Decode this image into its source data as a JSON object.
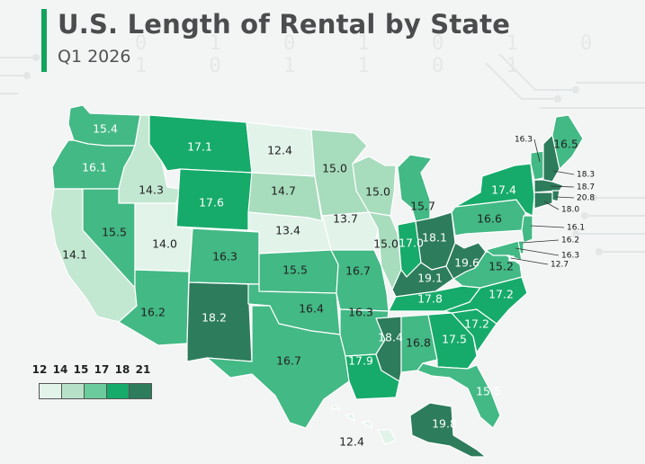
{
  "title": "U.S. Length of Rental by State",
  "subtitle": "Q1 2026",
  "background_digits": "0 1 0 1 0 1 0 1 0 1 1 0 1",
  "legend": {
    "breaks": [
      "12",
      "14",
      "15",
      "17",
      "18",
      "21"
    ],
    "colors": [
      "#e2f3ea",
      "#b7e2c9",
      "#6ccb9c",
      "#16ab6a",
      "#2d7c5c"
    ]
  },
  "states": [
    {
      "abbr": "WA",
      "value": "15.4",
      "color": "#43b985"
    },
    {
      "abbr": "OR",
      "value": "16.1",
      "color": "#43b985"
    },
    {
      "abbr": "CA",
      "value": "14.1",
      "color": "#c3e8d2"
    },
    {
      "abbr": "ID",
      "value": "14.3",
      "color": "#c3e8d2"
    },
    {
      "abbr": "NV",
      "value": "15.5",
      "color": "#43b985"
    },
    {
      "abbr": "MT",
      "value": "17.1",
      "color": "#16ab6a"
    },
    {
      "abbr": "WY",
      "value": "17.6",
      "color": "#16ab6a"
    },
    {
      "abbr": "UT",
      "value": "14.0",
      "color": "#e2f3ea"
    },
    {
      "abbr": "AZ",
      "value": "16.2",
      "color": "#43b985"
    },
    {
      "abbr": "CO",
      "value": "16.3",
      "color": "#43b985"
    },
    {
      "abbr": "NM",
      "value": "18.2",
      "color": "#2d7c5c"
    },
    {
      "abbr": "ND",
      "value": "12.4",
      "color": "#e2f3ea"
    },
    {
      "abbr": "SD",
      "value": "14.7",
      "color": "#a7dcbd"
    },
    {
      "abbr": "NE",
      "value": "13.4",
      "color": "#e2f3ea"
    },
    {
      "abbr": "KS",
      "value": "15.5",
      "color": "#43b985"
    },
    {
      "abbr": "OK",
      "value": "16.4",
      "color": "#43b985"
    },
    {
      "abbr": "TX",
      "value": "16.7",
      "color": "#43b985"
    },
    {
      "abbr": "MN",
      "value": "15.0",
      "color": "#a7dcbd"
    },
    {
      "abbr": "IA",
      "value": "13.7",
      "color": "#e2f3ea"
    },
    {
      "abbr": "MO",
      "value": "16.7",
      "color": "#43b985"
    },
    {
      "abbr": "AR",
      "value": "16.3",
      "color": "#43b985"
    },
    {
      "abbr": "LA",
      "value": "17.9",
      "color": "#16ab6a"
    },
    {
      "abbr": "WI",
      "value": "15.0",
      "color": "#a7dcbd"
    },
    {
      "abbr": "IL",
      "value": "15.0",
      "color": "#a7dcbd"
    },
    {
      "abbr": "MI",
      "value": "15.7",
      "color": "#43b985"
    },
    {
      "abbr": "IN",
      "value": "17.0",
      "color": "#16ab6a"
    },
    {
      "abbr": "OH",
      "value": "18.1",
      "color": "#2d7c5c"
    },
    {
      "abbr": "KY",
      "value": "19.1",
      "color": "#2d7c5c"
    },
    {
      "abbr": "TN",
      "value": "17.8",
      "color": "#16ab6a"
    },
    {
      "abbr": "MS",
      "value": "18.4",
      "color": "#2d7c5c"
    },
    {
      "abbr": "AL",
      "value": "16.8",
      "color": "#43b985"
    },
    {
      "abbr": "GA",
      "value": "17.5",
      "color": "#16ab6a"
    },
    {
      "abbr": "FL",
      "value": "15.5",
      "color": "#43b985"
    },
    {
      "abbr": "SC",
      "value": "17.2",
      "color": "#16ab6a"
    },
    {
      "abbr": "NC",
      "value": "17.2",
      "color": "#16ab6a"
    },
    {
      "abbr": "VA",
      "value": "15.2",
      "color": "#43b985"
    },
    {
      "abbr": "WV",
      "value": "19.6",
      "color": "#2d7c5c"
    },
    {
      "abbr": "PA",
      "value": "16.6",
      "color": "#43b985"
    },
    {
      "abbr": "NY",
      "value": "17.4",
      "color": "#16ab6a"
    },
    {
      "abbr": "VT",
      "value": "16.3",
      "color": "#43b985"
    },
    {
      "abbr": "NH",
      "value": "18.3",
      "color": "#2d7c5c"
    },
    {
      "abbr": "ME",
      "value": "16.5",
      "color": "#43b985"
    },
    {
      "abbr": "MA",
      "value": "18.7",
      "color": "#2d7c5c"
    },
    {
      "abbr": "RI",
      "value": "20.8",
      "color": "#2d7c5c"
    },
    {
      "abbr": "CT",
      "value": "18.0",
      "color": "#2d7c5c"
    },
    {
      "abbr": "NJ",
      "value": "16.1",
      "color": "#43b985"
    },
    {
      "abbr": "DE",
      "value": "16.2",
      "color": "#43b985"
    },
    {
      "abbr": "MD",
      "value": "16.3",
      "color": "#43b985"
    },
    {
      "abbr": "DC",
      "value": "12.7",
      "color": "#e2f3ea"
    },
    {
      "abbr": "AK",
      "value": "19.8",
      "color": "#2d7c5c"
    },
    {
      "abbr": "HI",
      "value": "12.4",
      "color": "#e2f3ea"
    }
  ]
}
